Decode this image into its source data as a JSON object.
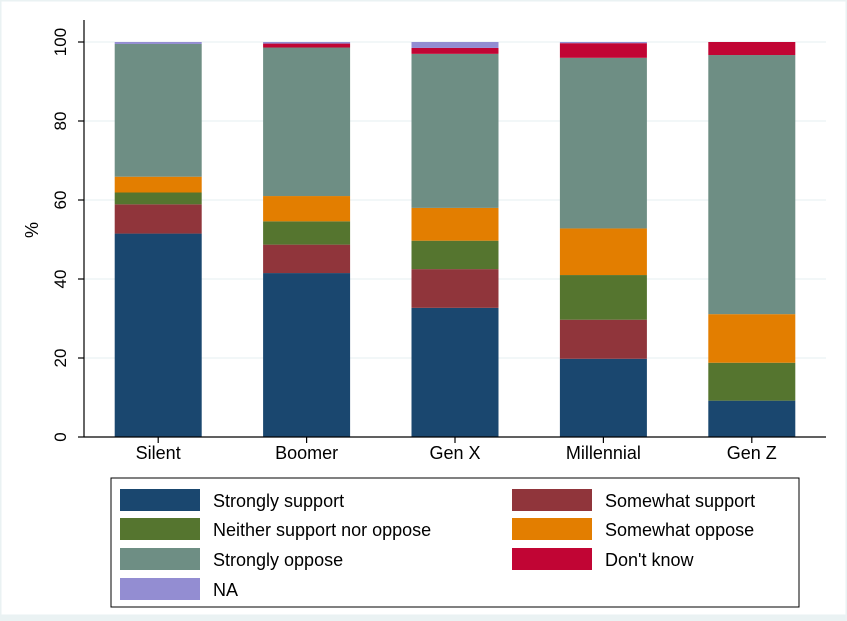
{
  "chart_data": {
    "type": "bar",
    "stacked": true,
    "categories": [
      "Silent",
      "Boomer",
      "Gen X",
      "Millennial",
      "Gen Z"
    ],
    "ylabel": "%",
    "xlabel": "",
    "ylim": [
      0,
      100
    ],
    "yticks": [
      "0",
      "20",
      "40",
      "60",
      "80",
      "100"
    ],
    "grid": true,
    "legend_position": "bottom",
    "series": [
      {
        "name": "Strongly support",
        "color": "#1a476f",
        "values": [
          51.5,
          41.5,
          32.7,
          19.8,
          9.2
        ]
      },
      {
        "name": "Somewhat support",
        "color": "#90353b",
        "values": [
          7.4,
          7.2,
          9.8,
          9.9,
          0.0
        ]
      },
      {
        "name": "Neither support nor oppose",
        "color": "#55752f",
        "values": [
          3.0,
          5.9,
          7.2,
          11.3,
          9.6
        ]
      },
      {
        "name": "Somewhat oppose",
        "color": "#e37e00",
        "values": [
          4.0,
          6.4,
          8.3,
          11.8,
          12.3
        ]
      },
      {
        "name": "Strongly oppose",
        "color": "#6e8e84",
        "values": [
          33.6,
          37.6,
          39.0,
          43.2,
          65.6
        ]
      },
      {
        "name": "Don't know",
        "color": "#c10534",
        "values": [
          0.0,
          1.0,
          1.5,
          3.7,
          3.3
        ]
      },
      {
        "name": "NA",
        "color": "#938dd2",
        "values": [
          0.5,
          0.4,
          1.5,
          0.3,
          0.0
        ]
      }
    ]
  }
}
